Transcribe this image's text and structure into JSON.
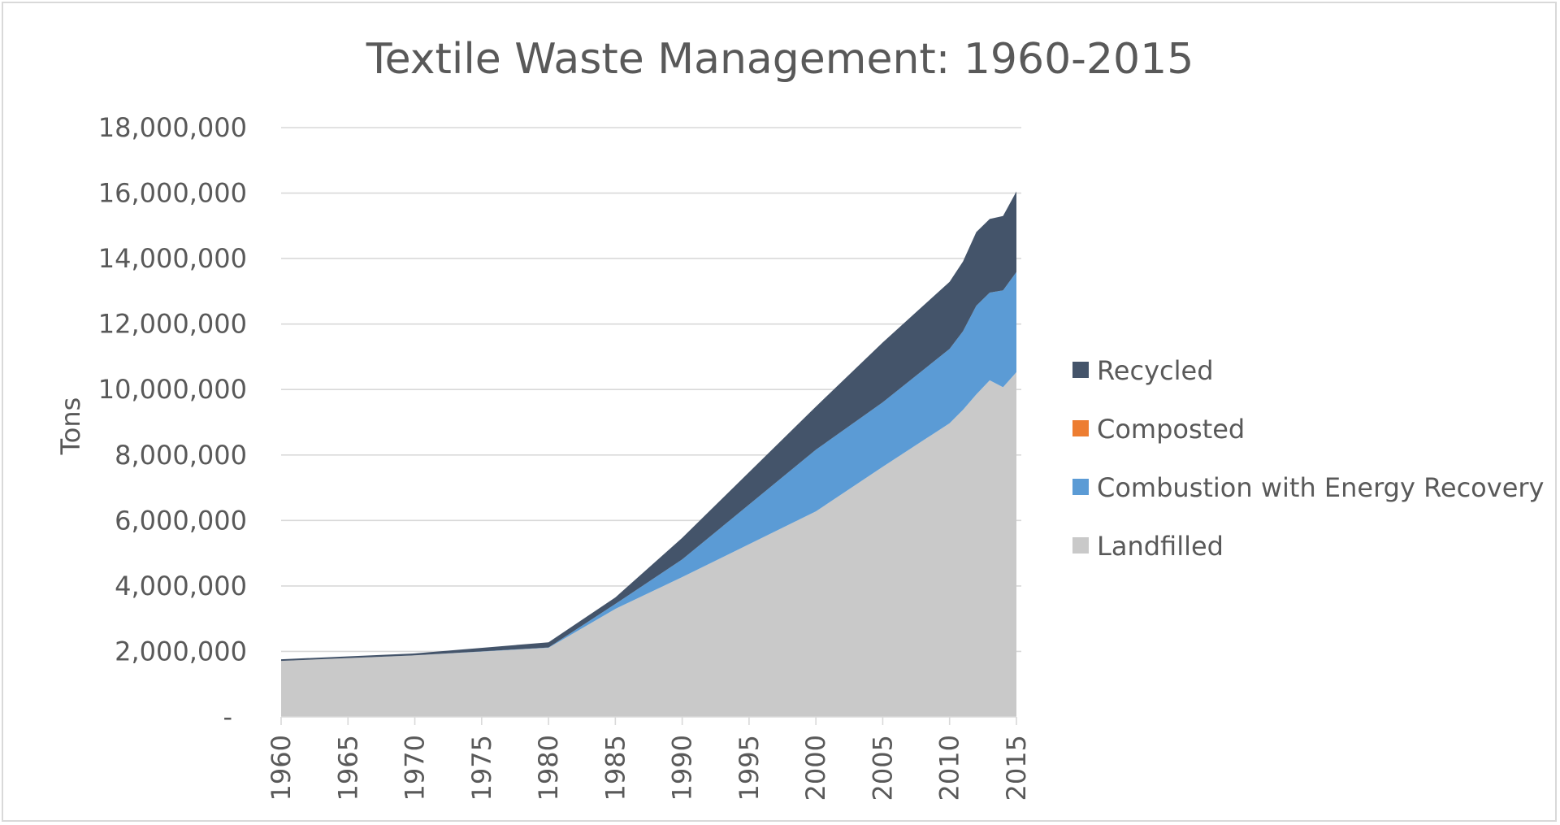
{
  "chart_data": {
    "type": "area",
    "stacked": true,
    "title": "Textile  Waste Management: 1960-2015",
    "xlabel": "",
    "ylabel": "Tons",
    "x": [
      1960,
      1970,
      1980,
      1985,
      1990,
      2000,
      2005,
      2010,
      2011,
      2012,
      2013,
      2014,
      2015
    ],
    "x_ticks": [
      "1960",
      "1965",
      "1970",
      "1975",
      "1980",
      "1985",
      "1990",
      "1995",
      "2000",
      "2005",
      "2010",
      "2015"
    ],
    "y_ticks": [
      "-",
      "2,000,000",
      "4,000,000",
      "6,000,000",
      "8,000,000",
      "10,000,000",
      "12,000,000",
      "14,000,000",
      "16,000,000",
      "18,000,000"
    ],
    "ylim": [
      0,
      18000000
    ],
    "grid": true,
    "legend_position": "right",
    "series": [
      {
        "name": "Landfilled",
        "color": "#c9c9c9",
        "values": [
          1710000,
          1880000,
          2110000,
          3300000,
          4270000,
          6280000,
          7640000,
          8970000,
          9380000,
          9850000,
          10280000,
          10070000,
          10530000
        ]
      },
      {
        "name": "Combustion with Energy Recovery",
        "color": "#5b9bd5",
        "values": [
          0,
          0,
          10000,
          150000,
          540000,
          1880000,
          1970000,
          2270000,
          2400000,
          2710000,
          2680000,
          2960000,
          3060000
        ]
      },
      {
        "name": "Composted",
        "color": "#ed7d31",
        "values": [
          0,
          0,
          0,
          0,
          0,
          0,
          0,
          0,
          0,
          0,
          0,
          0,
          0
        ]
      },
      {
        "name": "Recycled",
        "color": "#44546a",
        "values": [
          50000,
          60000,
          160000,
          200000,
          660000,
          1320000,
          1830000,
          2050000,
          2130000,
          2250000,
          2250000,
          2270000,
          2460000
        ]
      }
    ],
    "legend_order": [
      "Recycled",
      "Composted",
      "Combustion with Energy Recovery",
      "Landfilled"
    ]
  }
}
